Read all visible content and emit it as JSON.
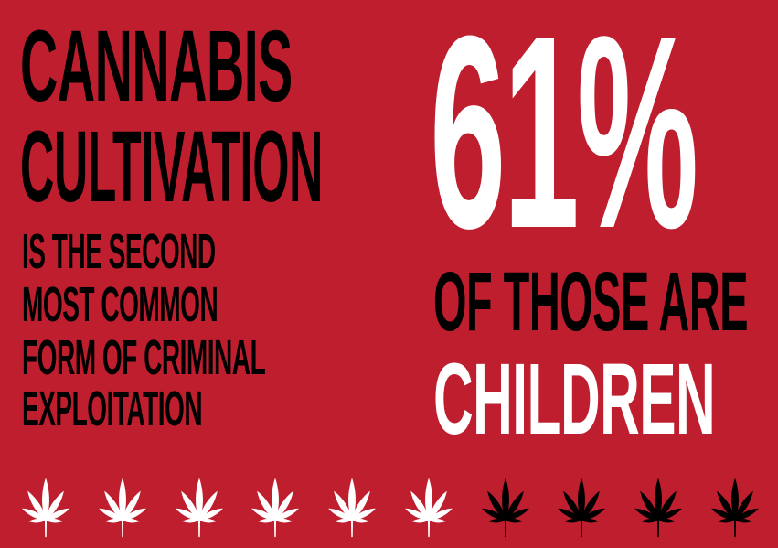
{
  "left": {
    "title_line1": "CANNABIS",
    "title_line2": "CULTIVATION",
    "subtitle_lines": [
      "IS THE SECOND",
      "MOST COMMON",
      "FORM OF CRIMINAL",
      "EXPLOITATION"
    ]
  },
  "right": {
    "percent": "61%",
    "line1": "OF THOSE ARE",
    "line2": "CHILDREN"
  },
  "icon_row": {
    "icon": "cannabis-leaf-icon",
    "count": 10,
    "highlighted_count": 6,
    "highlight_color": "#ffffff",
    "base_color": "#000000"
  },
  "colors": {
    "background": "#be1e2d",
    "dark_text": "#000000",
    "light_text": "#ffffff"
  }
}
